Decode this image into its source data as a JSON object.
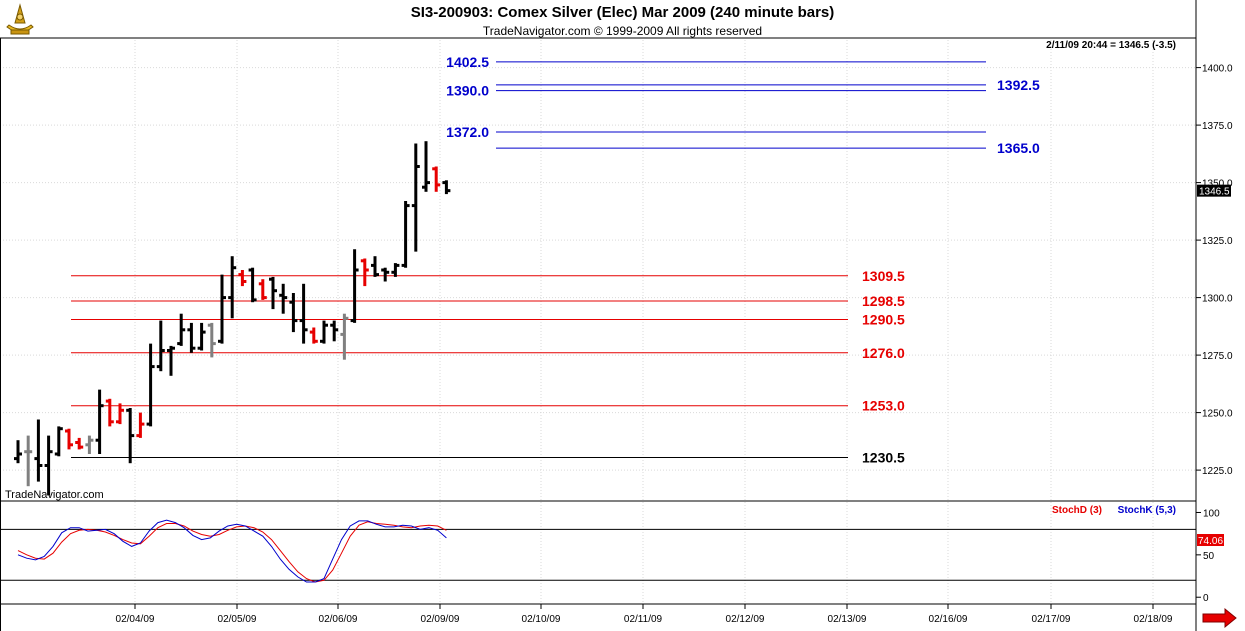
{
  "header": {
    "title": "SI3-200903:  Comex Silver (Elec) Mar 2009  (240 minute bars)",
    "copyright": "TradeNavigator.com © 1999-2009 All rights reserved",
    "last_quote": "2/11/09 20:44 = 1346.5 (-3.5)",
    "watermark": "TradeNavigator.com"
  },
  "colors": {
    "up_bar": "#000000",
    "down_bar": "#e60000",
    "neutral_bar": "#808080",
    "blue_level": "#0000cc",
    "red_level": "#e60000",
    "stoch_d": "#e60000",
    "stoch_k": "#0000cc",
    "grid": "#d9d9d9"
  },
  "chart_data": [
    {
      "type": "ohlc",
      "title": "SI3-200903:  Comex Silver (Elec) Mar 2009  (240 minute bars)",
      "ylim": [
        1212,
        1412
      ],
      "y_ticks": [
        "1225.0",
        "1250.0",
        "1275.0",
        "1300.0",
        "1325.0",
        "1350.0",
        "1375.0",
        "1400.0"
      ],
      "y_tick_values": [
        1225,
        1250,
        1275,
        1300,
        1325,
        1350,
        1375,
        1400
      ],
      "x_labels": [
        "02/04/09",
        "02/05/09",
        "02/06/09",
        "02/09/09",
        "02/10/09",
        "02/11/09",
        "02/12/09",
        "02/13/09",
        "02/16/09",
        "02/17/09",
        "02/18/09"
      ],
      "last_price": "1346.5",
      "bars": [
        {
          "o": 1230,
          "h": 1238,
          "l": 1228,
          "c": 1232,
          "k": "u"
        },
        {
          "o": 1233,
          "h": 1240,
          "l": 1218,
          "c": 1233,
          "k": "n"
        },
        {
          "o": 1230,
          "h": 1247,
          "l": 1220,
          "c": 1227,
          "k": "d_black"
        },
        {
          "o": 1227,
          "h": 1240,
          "l": 1214,
          "c": 1233,
          "k": "u"
        },
        {
          "o": 1232,
          "h": 1244,
          "l": 1231,
          "c": 1243,
          "k": "u"
        },
        {
          "o": 1242,
          "h": 1243,
          "l": 1234,
          "c": 1236,
          "k": "d"
        },
        {
          "o": 1237,
          "h": 1239,
          "l": 1234,
          "c": 1235,
          "k": "d"
        },
        {
          "o": 1236,
          "h": 1240,
          "l": 1232,
          "c": 1238,
          "k": "n"
        },
        {
          "o": 1238,
          "h": 1260,
          "l": 1232,
          "c": 1253,
          "k": "u"
        },
        {
          "o": 1255,
          "h": 1256,
          "l": 1244,
          "c": 1246,
          "k": "d"
        },
        {
          "o": 1246,
          "h": 1254,
          "l": 1245,
          "c": 1251,
          "k": "d"
        },
        {
          "o": 1251,
          "h": 1252,
          "l": 1228,
          "c": 1240,
          "k": "d_black"
        },
        {
          "o": 1240,
          "h": 1250,
          "l": 1239,
          "c": 1245,
          "k": "d"
        },
        {
          "o": 1245,
          "h": 1280,
          "l": 1244,
          "c": 1270,
          "k": "u"
        },
        {
          "o": 1270,
          "h": 1290,
          "l": 1268,
          "c": 1277,
          "k": "u"
        },
        {
          "o": 1277,
          "h": 1279,
          "l": 1266,
          "c": 1278,
          "k": "u"
        },
        {
          "o": 1280,
          "h": 1293,
          "l": 1279,
          "c": 1286,
          "k": "u"
        },
        {
          "o": 1286,
          "h": 1289,
          "l": 1276,
          "c": 1278,
          "k": "d_black"
        },
        {
          "o": 1278,
          "h": 1289,
          "l": 1277,
          "c": 1285,
          "k": "u"
        },
        {
          "o": 1288,
          "h": 1289,
          "l": 1274,
          "c": 1280,
          "k": "n"
        },
        {
          "o": 1281,
          "h": 1310,
          "l": 1280,
          "c": 1300,
          "k": "u"
        },
        {
          "o": 1300,
          "h": 1318,
          "l": 1291,
          "c": 1313,
          "k": "u"
        },
        {
          "o": 1310,
          "h": 1312,
          "l": 1305,
          "c": 1307,
          "k": "d"
        },
        {
          "o": 1312,
          "h": 1313,
          "l": 1298,
          "c": 1299,
          "k": "d_black"
        },
        {
          "o": 1306,
          "h": 1308,
          "l": 1299,
          "c": 1300,
          "k": "d"
        },
        {
          "o": 1308,
          "h": 1309,
          "l": 1295,
          "c": 1303,
          "k": "d_black"
        },
        {
          "o": 1301,
          "h": 1306,
          "l": 1293,
          "c": 1300,
          "k": "d_black"
        },
        {
          "o": 1298,
          "h": 1302,
          "l": 1285,
          "c": 1290,
          "k": "d_black"
        },
        {
          "o": 1290,
          "h": 1306,
          "l": 1280,
          "c": 1286,
          "k": "d_black"
        },
        {
          "o": 1285,
          "h": 1287,
          "l": 1280,
          "c": 1281,
          "k": "d"
        },
        {
          "o": 1281,
          "h": 1290,
          "l": 1280,
          "c": 1288,
          "k": "u"
        },
        {
          "o": 1288,
          "h": 1290,
          "l": 1281,
          "c": 1286,
          "k": "d_black"
        },
        {
          "o": 1284,
          "h": 1293,
          "l": 1273,
          "c": 1291,
          "k": "n"
        },
        {
          "o": 1290,
          "h": 1321,
          "l": 1289,
          "c": 1312,
          "k": "u"
        },
        {
          "o": 1316,
          "h": 1317,
          "l": 1305,
          "c": 1312,
          "k": "d"
        },
        {
          "o": 1314,
          "h": 1318,
          "l": 1309,
          "c": 1310,
          "k": "d_black"
        },
        {
          "o": 1312,
          "h": 1313,
          "l": 1307,
          "c": 1311,
          "k": "u"
        },
        {
          "o": 1311,
          "h": 1315,
          "l": 1309,
          "c": 1314,
          "k": "u"
        },
        {
          "o": 1314,
          "h": 1342,
          "l": 1313,
          "c": 1340,
          "k": "u"
        },
        {
          "o": 1340,
          "h": 1367,
          "l": 1320,
          "c": 1357,
          "k": "u"
        },
        {
          "o": 1348,
          "h": 1368,
          "l": 1346,
          "c": 1350,
          "k": "u"
        },
        {
          "o": 1356,
          "h": 1357,
          "l": 1346,
          "c": 1349,
          "k": "d"
        },
        {
          "o": 1350,
          "h": 1351,
          "l": 1345,
          "c": 1346.5,
          "k": "d_black"
        }
      ],
      "horizontal_levels": [
        {
          "label": "1402.5",
          "value": 1402.5,
          "color": "blue",
          "side": "left"
        },
        {
          "label": "1392.5",
          "value": 1392.5,
          "color": "blue",
          "side": "right"
        },
        {
          "label": "1390.0",
          "value": 1390.0,
          "color": "blue",
          "side": "left"
        },
        {
          "label": "1372.0",
          "value": 1372.0,
          "color": "blue",
          "side": "left"
        },
        {
          "label": "1365.0",
          "value": 1365.0,
          "color": "blue",
          "side": "right"
        },
        {
          "label": "1309.5",
          "value": 1309.5,
          "color": "red",
          "side": "right"
        },
        {
          "label": "1298.5",
          "value": 1298.5,
          "color": "red",
          "side": "right"
        },
        {
          "label": "1290.5",
          "value": 1290.5,
          "color": "red",
          "side": "right"
        },
        {
          "label": "1276.0",
          "value": 1276.0,
          "color": "red",
          "side": "right"
        },
        {
          "label": "1253.0",
          "value": 1253.0,
          "color": "red",
          "side": "right"
        },
        {
          "label": "1230.5",
          "value": 1230.5,
          "color": "black",
          "side": "right"
        }
      ]
    },
    {
      "type": "line",
      "title": "",
      "ylim": [
        -8,
        110
      ],
      "y_ticks": [
        "100",
        "50",
        "0"
      ],
      "y_tick_values": [
        100,
        50,
        0
      ],
      "reference_lines": [
        80,
        20
      ],
      "legend": [
        "StochD (3)",
        "StochK (5,3)"
      ],
      "last_value": "74.06",
      "series": [
        {
          "name": "StochD (3)",
          "values": [
            55,
            50,
            46,
            45,
            52,
            65,
            75,
            79,
            80,
            79,
            77,
            73,
            68,
            64,
            63,
            72,
            82,
            87,
            87,
            84,
            78,
            74,
            72,
            74,
            79,
            83,
            84,
            82,
            77,
            68,
            55,
            42,
            30,
            22,
            18,
            20,
            32,
            52,
            72,
            85,
            89,
            87,
            86,
            85,
            83,
            82,
            84,
            85,
            84,
            79
          ]
        },
        {
          "name": "StochK (5,3)",
          "values": [
            50,
            46,
            44,
            48,
            60,
            76,
            82,
            82,
            78,
            79,
            80,
            75,
            66,
            60,
            64,
            78,
            88,
            91,
            88,
            82,
            73,
            68,
            70,
            78,
            84,
            86,
            84,
            78,
            72,
            60,
            45,
            33,
            24,
            18,
            18,
            22,
            45,
            68,
            84,
            90,
            90,
            86,
            83,
            83,
            85,
            84,
            80,
            82,
            79,
            70
          ]
        }
      ]
    }
  ]
}
